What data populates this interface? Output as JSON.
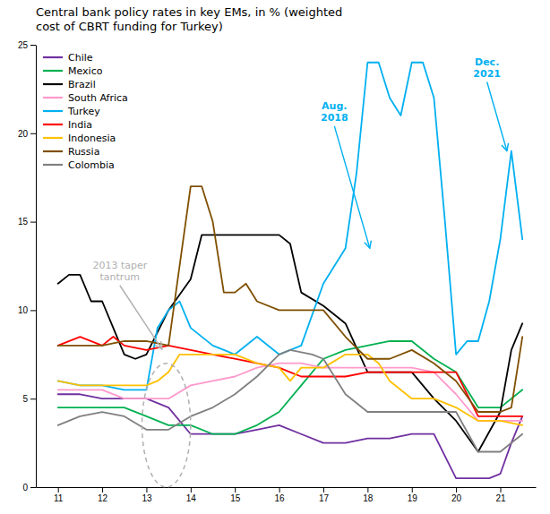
{
  "chart_data": {
    "type": "line",
    "title": "Central bank policy rates in key EMs, in % (weighted\ncost of CBRT funding for Turkey)",
    "xlim": [
      10.5,
      21.8
    ],
    "ylim": [
      0,
      25
    ],
    "xticks": [
      11,
      12,
      13,
      14,
      15,
      16,
      17,
      18,
      19,
      20,
      21
    ],
    "yticks": [
      0,
      5,
      10,
      15,
      20,
      25
    ],
    "grid": false,
    "legend": "top-left",
    "series": [
      {
        "name": "Chile",
        "color": "#7030a0",
        "x": [
          11.0,
          11.5,
          12.0,
          12.25,
          12.5,
          13.0,
          13.5,
          14.0,
          14.5,
          15.0,
          15.5,
          16.0,
          16.5,
          17.0,
          17.5,
          18.0,
          18.5,
          19.0,
          19.5,
          20.0,
          20.25,
          20.5,
          20.75,
          21.0,
          21.25,
          21.5
        ],
        "values": [
          5.25,
          5.25,
          5.0,
          5.0,
          5.0,
          5.0,
          4.5,
          3.0,
          3.0,
          3.0,
          3.25,
          3.5,
          3.0,
          2.5,
          2.5,
          2.75,
          2.75,
          3.0,
          3.0,
          0.5,
          0.5,
          0.5,
          0.5,
          0.75,
          2.5,
          4.0
        ]
      },
      {
        "name": "Mexico",
        "color": "#00b050",
        "x": [
          11.0,
          11.5,
          12.0,
          12.5,
          13.0,
          13.5,
          14.0,
          14.5,
          15.0,
          15.5,
          16.0,
          16.5,
          17.0,
          17.5,
          18.0,
          18.5,
          19.0,
          19.5,
          20.0,
          20.5,
          21.0,
          21.5
        ],
        "values": [
          4.5,
          4.5,
          4.5,
          4.5,
          4.0,
          3.5,
          3.5,
          3.0,
          3.0,
          3.5,
          4.25,
          5.75,
          7.25,
          7.75,
          8.0,
          8.25,
          8.25,
          7.25,
          6.5,
          4.5,
          4.5,
          5.5
        ]
      },
      {
        "name": "Brazil",
        "color": "#000000",
        "x": [
          11.0,
          11.25,
          11.5,
          11.75,
          12.0,
          12.25,
          12.5,
          12.75,
          13.0,
          13.5,
          14.0,
          14.25,
          14.5,
          14.75,
          15.0,
          15.5,
          16.0,
          16.25,
          16.5,
          17.0,
          17.5,
          18.0,
          18.5,
          19.0,
          19.5,
          20.0,
          20.5,
          21.0,
          21.25,
          21.5
        ],
        "values": [
          11.5,
          12.0,
          12.0,
          10.5,
          10.5,
          9.0,
          7.5,
          7.25,
          7.5,
          10.0,
          11.75,
          14.25,
          14.25,
          14.25,
          14.25,
          14.25,
          14.25,
          13.75,
          11.0,
          10.25,
          9.25,
          6.5,
          6.5,
          6.5,
          5.0,
          3.75,
          2.0,
          4.25,
          7.75,
          9.25
        ]
      },
      {
        "name": "South Africa",
        "color": "#ff99cc",
        "x": [
          11.0,
          11.5,
          12.0,
          12.5,
          13.0,
          13.5,
          14.0,
          14.5,
          15.0,
          15.5,
          16.0,
          16.5,
          17.0,
          17.5,
          18.0,
          18.5,
          19.0,
          19.5,
          20.0,
          20.5,
          21.0,
          21.5
        ],
        "values": [
          5.5,
          5.5,
          5.5,
          5.0,
          5.0,
          5.0,
          5.75,
          6.0,
          6.25,
          6.75,
          7.0,
          7.0,
          6.75,
          6.75,
          6.75,
          6.75,
          6.75,
          6.5,
          5.25,
          3.75,
          3.75,
          3.75
        ]
      },
      {
        "name": "Turkey",
        "color": "#00b0f0",
        "x": [
          11.0,
          11.5,
          12.0,
          12.5,
          13.0,
          13.25,
          13.5,
          13.75,
          14.0,
          14.5,
          15.0,
          15.5,
          16.0,
          16.5,
          17.0,
          17.25,
          17.5,
          17.75,
          18.0,
          18.25,
          18.5,
          18.75,
          19.0,
          19.25,
          19.5,
          19.75,
          20.0,
          20.25,
          20.5,
          20.75,
          21.0,
          21.25,
          21.5
        ],
        "values": [
          6.0,
          5.75,
          5.75,
          5.5,
          5.5,
          9.0,
          10.0,
          10.5,
          9.0,
          8.0,
          7.5,
          8.5,
          7.5,
          8.0,
          11.5,
          12.5,
          13.5,
          17.75,
          24.0,
          24.0,
          22.0,
          21.0,
          24.0,
          24.0,
          22.0,
          15.0,
          7.5,
          8.25,
          8.25,
          10.5,
          14.0,
          19.0,
          14.0
        ]
      },
      {
        "name": "India",
        "color": "#ff0000",
        "x": [
          11.0,
          11.5,
          12.0,
          12.25,
          12.5,
          13.0,
          13.5,
          14.0,
          14.5,
          15.0,
          15.5,
          16.0,
          16.25,
          16.5,
          17.0,
          17.5,
          18.0,
          18.5,
          19.0,
          19.5,
          20.0,
          20.5,
          21.0,
          21.5
        ],
        "values": [
          8.0,
          8.5,
          8.0,
          8.5,
          8.0,
          7.75,
          8.0,
          7.75,
          7.5,
          7.25,
          7.0,
          6.75,
          6.5,
          6.25,
          6.25,
          6.25,
          6.5,
          6.5,
          6.5,
          6.5,
          6.5,
          4.0,
          4.0,
          4.0
        ]
      },
      {
        "name": "Indonesia",
        "color": "#ffc000",
        "x": [
          11.0,
          11.5,
          12.0,
          12.5,
          13.0,
          13.25,
          13.5,
          13.75,
          14.0,
          14.5,
          15.0,
          15.5,
          16.0,
          16.25,
          16.5,
          17.0,
          17.5,
          18.0,
          18.25,
          18.5,
          19.0,
          19.5,
          20.0,
          20.5,
          21.0,
          21.5
        ],
        "values": [
          6.0,
          5.75,
          5.75,
          5.75,
          5.75,
          6.0,
          6.5,
          7.5,
          7.5,
          7.5,
          7.5,
          7.0,
          6.75,
          6.0,
          6.75,
          6.75,
          7.5,
          7.5,
          7.0,
          6.0,
          5.0,
          5.0,
          4.5,
          3.75,
          3.75,
          3.5
        ]
      },
      {
        "name": "Russia",
        "color": "#7f4f00",
        "x": [
          11.0,
          11.5,
          12.0,
          12.5,
          13.0,
          13.5,
          14.0,
          14.25,
          14.5,
          14.75,
          15.0,
          15.25,
          15.5,
          16.0,
          16.5,
          17.0,
          17.5,
          18.0,
          18.5,
          19.0,
          19.5,
          20.0,
          20.5,
          21.0,
          21.25,
          21.5
        ],
        "values": [
          8.0,
          8.0,
          8.0,
          8.25,
          8.25,
          8.0,
          17.0,
          17.0,
          15.0,
          11.0,
          11.0,
          11.5,
          10.5,
          10.0,
          10.0,
          10.0,
          8.5,
          7.25,
          7.25,
          7.75,
          7.0,
          6.0,
          4.25,
          4.25,
          4.5,
          8.5
        ]
      },
      {
        "name": "Colombia",
        "color": "#808080",
        "x": [
          11.0,
          11.5,
          12.0,
          12.5,
          13.0,
          13.5,
          14.0,
          14.5,
          15.0,
          15.5,
          16.0,
          16.25,
          16.75,
          17.0,
          17.5,
          18.0,
          18.5,
          19.0,
          19.5,
          20.0,
          20.5,
          21.0,
          21.5
        ],
        "values": [
          3.5,
          4.0,
          4.25,
          4.0,
          3.25,
          3.25,
          4.0,
          4.5,
          5.25,
          6.25,
          7.5,
          7.75,
          7.5,
          7.25,
          5.25,
          4.25,
          4.25,
          4.25,
          4.25,
          4.25,
          2.0,
          2.0,
          3.0
        ]
      }
    ],
    "annotations": [
      {
        "text": "2013 taper\ntantrum",
        "color": "#b0b0b0",
        "x": 13.35,
        "y": 7.8,
        "text_x": 12.4,
        "text_y": 11.5,
        "ellipse": {
          "x": 13.45,
          "y": 3.5,
          "width": 1.1,
          "height": 7.0
        }
      },
      {
        "text": "Aug.\n2018",
        "color": "#00b0f0",
        "x": 18.05,
        "y": 13.5,
        "text_x": 17.25,
        "text_y": 20.5
      },
      {
        "text": "Dec.\n2021",
        "color": "#00b0f0",
        "x": 21.15,
        "y": 19.0,
        "text_x": 20.7,
        "text_y": 23.0
      }
    ]
  }
}
